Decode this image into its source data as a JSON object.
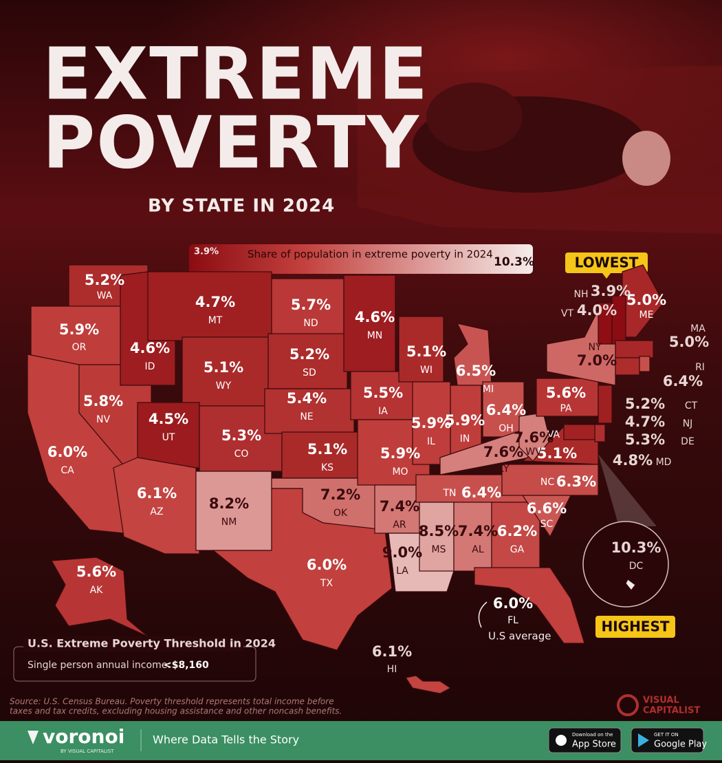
{
  "header": {
    "title_line1": "EXTREME",
    "title_line2": "POVERTY",
    "subtitle": "BY STATE IN 2024"
  },
  "legend": {
    "title": "Share of population in extreme poverty in 2024",
    "min": {
      "value": 3.9,
      "label": "3.9%"
    },
    "max": {
      "value": 10.3,
      "label": "10.3%"
    }
  },
  "callouts": {
    "lowest": "LOWEST",
    "highest": "HIGHEST",
    "us_average": "U.S average"
  },
  "states": [
    {
      "code": "WA",
      "value": 5.2,
      "value_label": "5.2%"
    },
    {
      "code": "OR",
      "value": 5.9,
      "value_label": "5.9%"
    },
    {
      "code": "CA",
      "value": 6.0,
      "value_label": "6.0%"
    },
    {
      "code": "NV",
      "value": 5.8,
      "value_label": "5.8%"
    },
    {
      "code": "ID",
      "value": 4.6,
      "value_label": "4.6%"
    },
    {
      "code": "MT",
      "value": 4.7,
      "value_label": "4.7%"
    },
    {
      "code": "WY",
      "value": 5.1,
      "value_label": "5.1%"
    },
    {
      "code": "UT",
      "value": 4.5,
      "value_label": "4.5%"
    },
    {
      "code": "AZ",
      "value": 6.1,
      "value_label": "6.1%"
    },
    {
      "code": "CO",
      "value": 5.3,
      "value_label": "5.3%"
    },
    {
      "code": "NM",
      "value": 8.2,
      "value_label": "8.2%"
    },
    {
      "code": "ND",
      "value": 5.7,
      "value_label": "5.7%"
    },
    {
      "code": "SD",
      "value": 5.2,
      "value_label": "5.2%"
    },
    {
      "code": "NE",
      "value": 5.4,
      "value_label": "5.4%"
    },
    {
      "code": "KS",
      "value": 5.1,
      "value_label": "5.1%"
    },
    {
      "code": "OK",
      "value": 7.2,
      "value_label": "7.2%"
    },
    {
      "code": "TX",
      "value": 6.0,
      "value_label": "6.0%"
    },
    {
      "code": "MN",
      "value": 4.6,
      "value_label": "4.6%"
    },
    {
      "code": "IA",
      "value": 5.5,
      "value_label": "5.5%"
    },
    {
      "code": "MO",
      "value": 5.9,
      "value_label": "5.9%"
    },
    {
      "code": "AR",
      "value": 7.4,
      "value_label": "7.4%"
    },
    {
      "code": "LA",
      "value": 9.0,
      "value_label": "9.0%"
    },
    {
      "code": "WI",
      "value": 5.1,
      "value_label": "5.1%"
    },
    {
      "code": "IL",
      "value": 5.9,
      "value_label": "5.9%"
    },
    {
      "code": "MI",
      "value": 6.5,
      "value_label": "6.5%"
    },
    {
      "code": "IN",
      "value": 5.9,
      "value_label": "5.9%"
    },
    {
      "code": "OH",
      "value": 6.4,
      "value_label": "6.4%"
    },
    {
      "code": "KY",
      "value": 7.6,
      "value_label": "7.6%"
    },
    {
      "code": "TN",
      "value": 6.4,
      "value_label": "6.4%"
    },
    {
      "code": "MS",
      "value": 8.5,
      "value_label": "8.5%"
    },
    {
      "code": "AL",
      "value": 7.4,
      "value_label": "7.4%"
    },
    {
      "code": "GA",
      "value": 6.2,
      "value_label": "6.2%"
    },
    {
      "code": "FL",
      "value": 6.0,
      "value_label": "6.0%"
    },
    {
      "code": "SC",
      "value": 6.6,
      "value_label": "6.6%"
    },
    {
      "code": "NC",
      "value": 6.3,
      "value_label": "6.3%"
    },
    {
      "code": "VA",
      "value": 5.1,
      "value_label": "5.1%"
    },
    {
      "code": "WV",
      "value": 7.6,
      "value_label": "7.6%"
    },
    {
      "code": "PA",
      "value": 5.6,
      "value_label": "5.6%"
    },
    {
      "code": "NY",
      "value": 7.0,
      "value_label": "7.0%"
    },
    {
      "code": "ME",
      "value": 5.0,
      "value_label": "5.0%"
    },
    {
      "code": "NH",
      "value": 3.9,
      "value_label": "3.9%"
    },
    {
      "code": "VT",
      "value": 4.0,
      "value_label": "4.0%"
    },
    {
      "code": "MA",
      "value": 5.0,
      "value_label": "5.0%"
    },
    {
      "code": "RI",
      "value": 6.4,
      "value_label": "6.4%"
    },
    {
      "code": "CT",
      "value": 5.2,
      "value_label": "5.2%"
    },
    {
      "code": "NJ",
      "value": 4.7,
      "value_label": "4.7%"
    },
    {
      "code": "DE",
      "value": 5.3,
      "value_label": "5.3%"
    },
    {
      "code": "MD",
      "value": 4.8,
      "value_label": "4.8%"
    },
    {
      "code": "DC",
      "value": 10.3,
      "value_label": "10.3%"
    },
    {
      "code": "AK",
      "value": 5.6,
      "value_label": "5.6%"
    },
    {
      "code": "HI",
      "value": 6.1,
      "value_label": "6.1%"
    }
  ],
  "threshold_box": {
    "title": "U.S. Extreme Poverty Threshold in 2024",
    "label": "Single person annual income:",
    "value": "<$8,160"
  },
  "source": {
    "line1": "Source: U.S. Census Bureau. Poverty threshold represents total income before",
    "line2": "taxes and tax credits, excluding housing assistance and other noncash benefits."
  },
  "brand": {
    "line1": "VISUAL",
    "line2": "CAPITALIST"
  },
  "footer": {
    "logo": "voronoi",
    "logo_sub": "BY VISUAL CAPITALIST",
    "tagline": "Where Data Tells the Story",
    "app_store_small": "Download on the",
    "app_store": "App Store",
    "google_small": "GET IT ON",
    "google": "Google Play"
  }
}
